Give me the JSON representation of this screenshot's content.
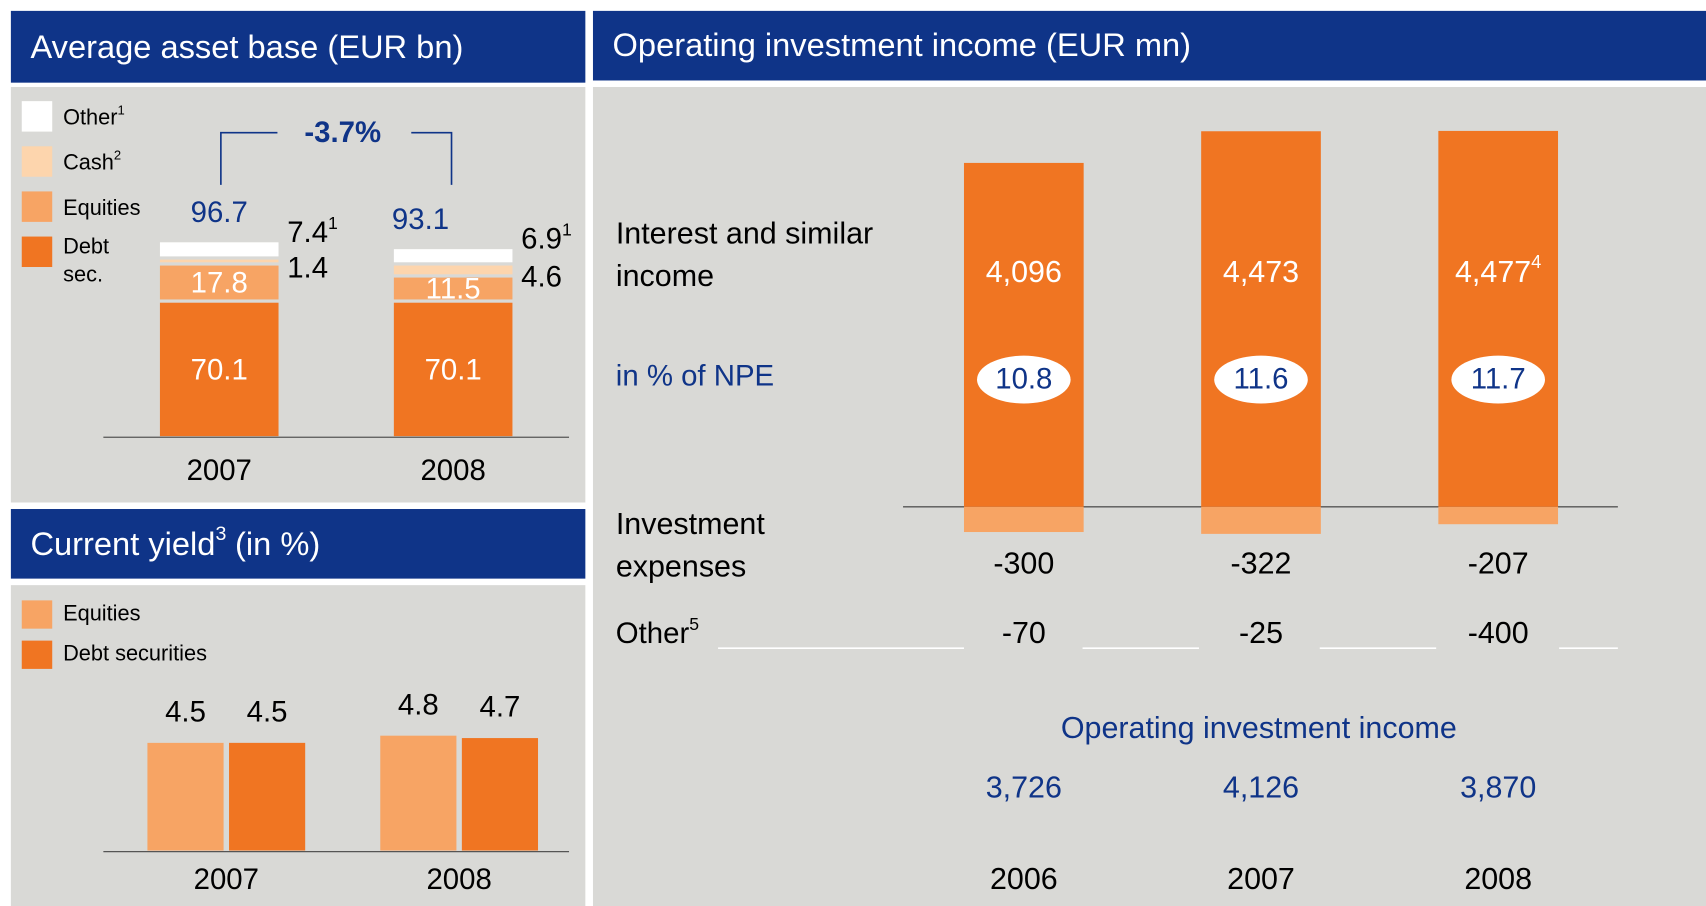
{
  "chart_data": [
    {
      "type": "stacked_bar",
      "title": "Average asset base (EUR bn)",
      "categories": [
        "2007",
        "2008"
      ],
      "series": [
        {
          "name": "Debt sec.",
          "color": "#f07522",
          "values": [
            70.1,
            70.1
          ]
        },
        {
          "name": "Equities",
          "color": "#f7a464",
          "values": [
            17.8,
            11.5
          ]
        },
        {
          "name": "Cash",
          "note": "2",
          "color": "#fdd5ad",
          "values": [
            1.4,
            4.6
          ]
        },
        {
          "name": "Other",
          "note": "1",
          "color": "#ffffff",
          "values": [
            7.4,
            6.9
          ]
        }
      ],
      "totals": [
        96.7,
        93.1
      ],
      "change": "-3.7%"
    },
    {
      "type": "grouped_bar",
      "title": "Current yield",
      "title_note": "3",
      "title_unit": "(in %)",
      "categories": [
        "2007",
        "2008"
      ],
      "series": [
        {
          "name": "Equities",
          "color": "#f7a464",
          "values": [
            4.5,
            4.8
          ]
        },
        {
          "name": "Debt securities",
          "color": "#f07522",
          "values": [
            4.5,
            4.7
          ]
        }
      ]
    },
    {
      "type": "income_table",
      "title": "Operating investment income (EUR mn)",
      "categories": [
        "2006",
        "2007",
        "2008"
      ],
      "series": [
        {
          "name": "Interest and similar income",
          "color": "#f07522",
          "values": [
            4096,
            4473,
            4477
          ],
          "value_labels": [
            "4,096",
            "4,473",
            "4,477"
          ],
          "value_notes": [
            null,
            null,
            "4"
          ]
        },
        {
          "name": "Investment expenses",
          "color": "#f7a464",
          "values": [
            -300,
            -322,
            -207
          ]
        },
        {
          "name": "Other",
          "note": "5",
          "values": [
            -70,
            -25,
            -400
          ]
        }
      ],
      "ratio": {
        "name": "in % of NPE",
        "values": [
          10.8,
          11.6,
          11.7
        ]
      },
      "result": {
        "name": "Operating investment income",
        "values": [
          3726,
          4126,
          3870
        ],
        "value_labels": [
          "3,726",
          "4,126",
          "3,870"
        ]
      }
    }
  ]
}
